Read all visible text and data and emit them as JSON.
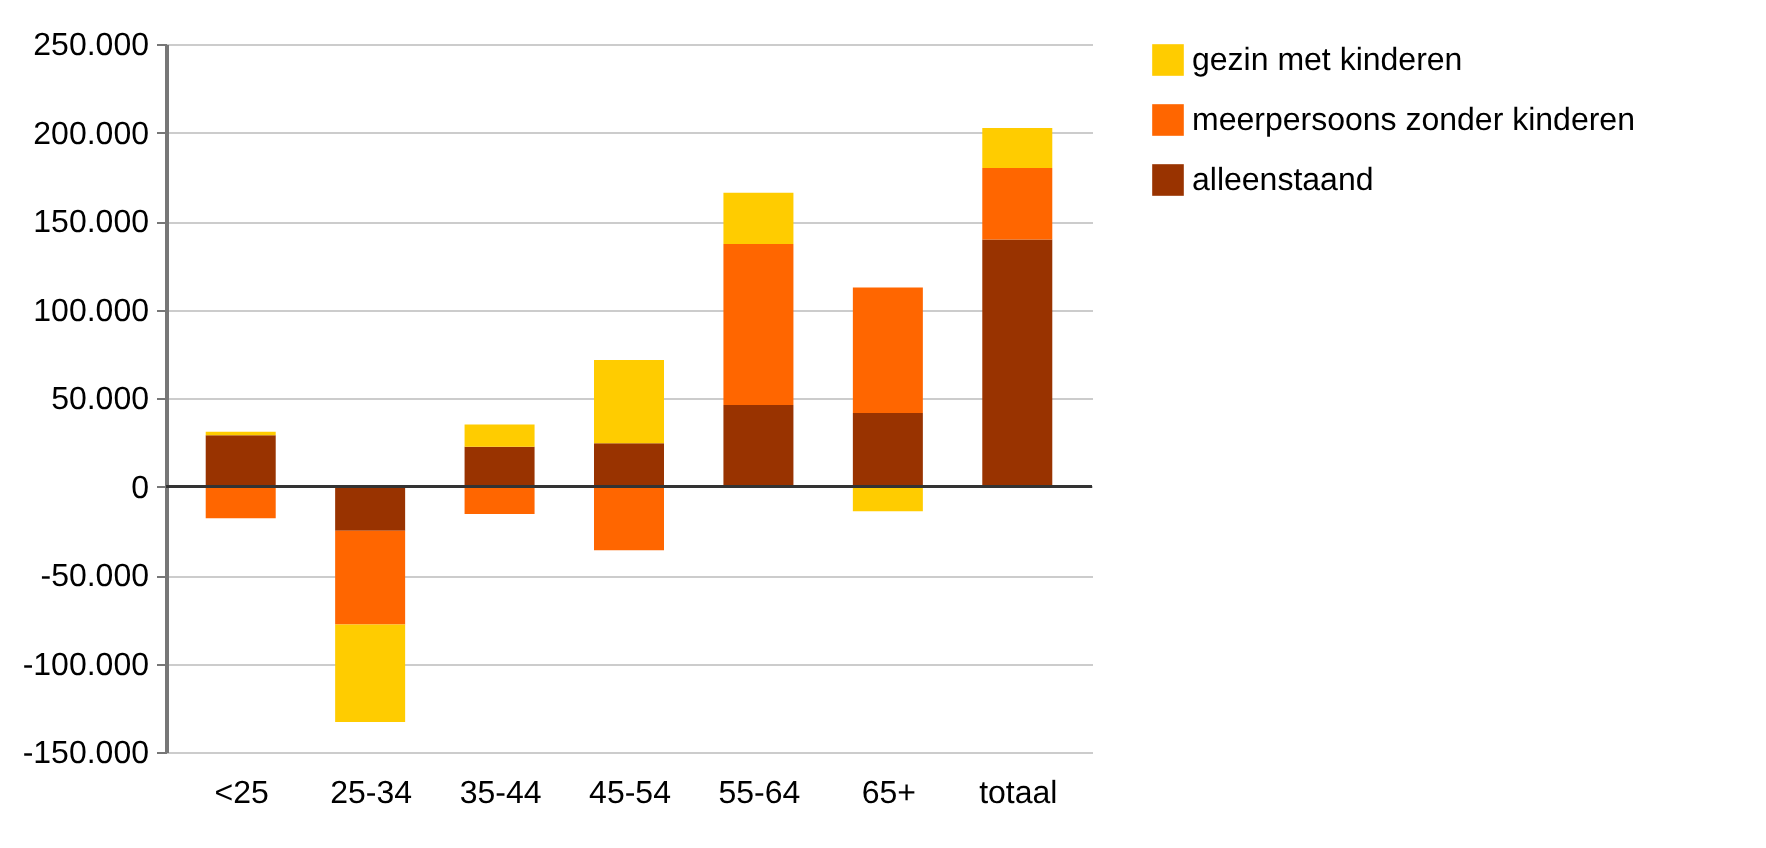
{
  "chart_data": {
    "type": "bar",
    "stacked": true,
    "categories": [
      "<25",
      "25-34",
      "35-44",
      "45-54",
      "55-64",
      "65+",
      "totaal"
    ],
    "series": [
      {
        "name": "alleenstaand",
        "color": "#993300",
        "values": [
          29000,
          -25000,
          22500,
          24500,
          46000,
          41500,
          139500
        ]
      },
      {
        "name": "meerpersoons zonder kinderen",
        "color": "#ff6600",
        "values": [
          -18000,
          -53000,
          -15500,
          -36000,
          91000,
          71000,
          40500
        ]
      },
      {
        "name": "gezin met kinderen",
        "color": "#ffcc00",
        "values": [
          2000,
          -55000,
          12500,
          47000,
          29000,
          -14000,
          22500
        ]
      }
    ],
    "ylim": [
      -150000,
      250000
    ],
    "yticks": [
      {
        "value": -150000,
        "label": "-150.000"
      },
      {
        "value": -100000,
        "label": "-100.000"
      },
      {
        "value": -50000,
        "label": "-50.000"
      },
      {
        "value": 0,
        "label": "0"
      },
      {
        "value": 50000,
        "label": "50.000"
      },
      {
        "value": 100000,
        "label": "100.000"
      },
      {
        "value": 150000,
        "label": "150.000"
      },
      {
        "value": 200000,
        "label": "200.000"
      },
      {
        "value": 250000,
        "label": "250.000"
      }
    ],
    "grid": "y",
    "legend": "right"
  }
}
